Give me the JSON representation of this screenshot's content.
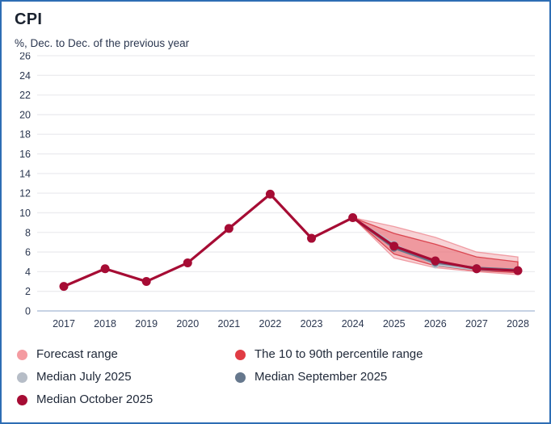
{
  "header": {
    "title": "CPI",
    "subtitle": "%, Dec. to Dec. of the previous year"
  },
  "chart_data": {
    "type": "line",
    "title": "CPI",
    "ylabel": "%, Dec. to Dec. of the previous year",
    "categories": [
      "2017",
      "2018",
      "2019",
      "2020",
      "2021",
      "2022",
      "2023",
      "2024",
      "2025",
      "2026",
      "2027",
      "2028"
    ],
    "ylim": [
      0,
      26
    ],
    "ytick_step": 2,
    "grid": true,
    "legend_position": "bottom",
    "bands": [
      {
        "name": "Forecast range",
        "x": [
          "2024",
          "2025",
          "2026",
          "2027",
          "2028"
        ],
        "upper": [
          9.5,
          8.6,
          7.5,
          6.0,
          5.5
        ],
        "lower": [
          9.5,
          5.4,
          4.4,
          4.0,
          3.7
        ],
        "fill": "#f1a6ab",
        "fill_opacity": 0.5,
        "stroke": "#ee949b"
      },
      {
        "name": "The 10 to 90th percentile range",
        "x": [
          "2024",
          "2025",
          "2026",
          "2027",
          "2028"
        ],
        "upper": [
          9.5,
          7.9,
          6.8,
          5.5,
          5.0
        ],
        "lower": [
          9.5,
          5.8,
          4.6,
          4.1,
          3.9
        ],
        "fill": "#e4555e",
        "fill_opacity": 0.45,
        "stroke": "#d73a45"
      }
    ],
    "series": [
      {
        "name": "Median July 2025",
        "color": "#b6bdc7",
        "x": [
          "2024",
          "2025",
          "2026",
          "2027",
          "2028"
        ],
        "values": [
          9.5,
          6.8,
          4.7,
          4.2,
          4.1
        ],
        "line_width": 2.5,
        "point_radius": 4.5
      },
      {
        "name": "Median September 2025",
        "color": "#66788d",
        "x": [
          "2024",
          "2025",
          "2026",
          "2027",
          "2028"
        ],
        "values": [
          9.5,
          6.4,
          4.9,
          4.4,
          4.2
        ],
        "line_width": 2.5,
        "point_radius": 4.5
      },
      {
        "name": "Median October 2025",
        "color": "#a60c34",
        "x": [
          "2017",
          "2018",
          "2019",
          "2020",
          "2021",
          "2022",
          "2023",
          "2024",
          "2025",
          "2026",
          "2027",
          "2028"
        ],
        "values": [
          2.5,
          4.3,
          3.0,
          4.9,
          8.4,
          11.9,
          7.4,
          9.5,
          6.6,
          5.1,
          4.3,
          4.1
        ],
        "line_width": 3.2,
        "point_radius": 5.5
      }
    ]
  },
  "legend": {
    "items": [
      {
        "label": "Forecast range",
        "color": "#f49ba1"
      },
      {
        "label": "The 10 to 90th percentile range",
        "color": "#e03c44"
      },
      {
        "label": "Median July 2025",
        "color": "#b6bdc7"
      },
      {
        "label": "Median September 2025",
        "color": "#66788d"
      },
      {
        "label": "Median October 2025",
        "color": "#a60c34"
      }
    ]
  },
  "colors": {
    "frame_border": "#2e6db4",
    "grid": "#ececef",
    "axis_line": "#c6d2e4",
    "axis_text": "#2b3750"
  }
}
